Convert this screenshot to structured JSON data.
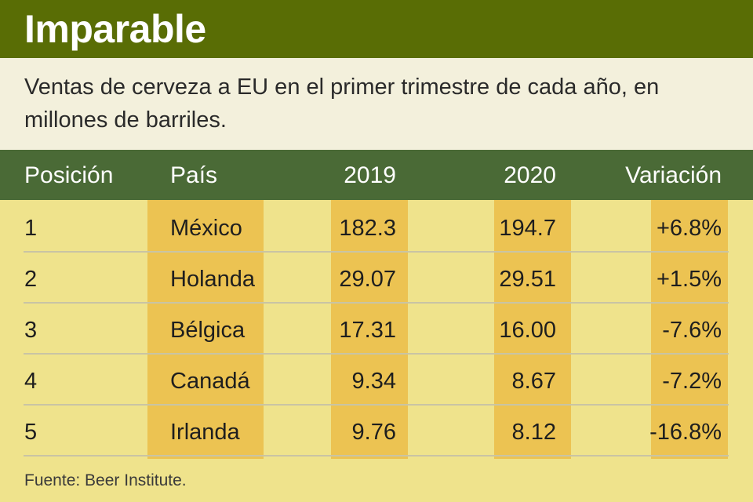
{
  "title": "Imparable",
  "subtitle": "Ventas de cerveza a EU en el primer trimestre de cada año, en millones de barriles.",
  "source": "Fuente: Beer Institute.",
  "colors": {
    "title_bar": "#596d05",
    "subtitle_bg": "#f3f0dc",
    "header_bar": "#4a6a36",
    "table_bg": "#efe38c",
    "column_highlight": "#ecc352"
  },
  "chart_data": {
    "type": "table",
    "title": "Imparable",
    "subtitle": "Ventas de cerveza a EU en el primer trimestre de cada año, en millones de barriles.",
    "columns": [
      "Posición",
      "País",
      "2019",
      "2020",
      "Variación"
    ],
    "rows": [
      [
        "1",
        "México",
        "182.3",
        "194.7",
        "+6.8%"
      ],
      [
        "2",
        "Holanda",
        "29.07",
        "29.51",
        "+1.5%"
      ],
      [
        "3",
        "Bélgica",
        "17.31",
        "16.00",
        "-7.6%"
      ],
      [
        "4",
        "Canadá",
        "9.34",
        "8.67",
        "-7.2%"
      ],
      [
        "5",
        "Irlanda",
        "9.76",
        "8.12",
        "-16.8%"
      ]
    ],
    "source": "Fuente: Beer Institute."
  }
}
